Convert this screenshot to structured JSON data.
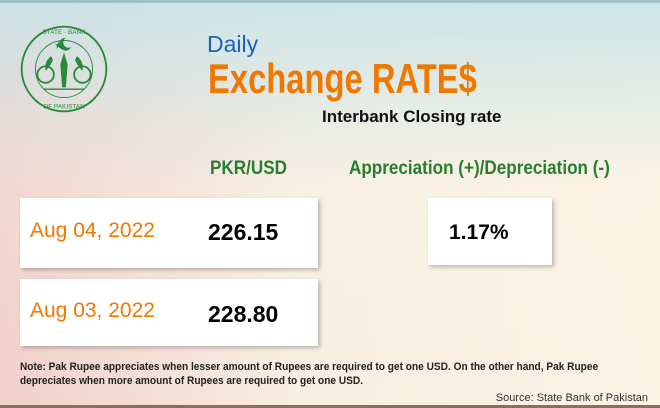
{
  "logo": {
    "text_top": "STATE BANK",
    "text_bottom": "OF PAKISTAN",
    "color": "#2a8a3a"
  },
  "header": {
    "daily": "Daily",
    "title": "Exchange RATE$",
    "subtitle": "Interbank Closing rate"
  },
  "columns": {
    "rate": "PKR/USD",
    "change": "Appreciation (+)/Depreciation (-)"
  },
  "rows": [
    {
      "date": "Aug 04, 2022",
      "rate": "226.15"
    },
    {
      "date": "Aug 03, 2022",
      "rate": "228.80"
    }
  ],
  "change_value": "1.17%",
  "note": "Note: Pak Rupee appreciates when lesser amount of Rupees are required to get one USD.  On the other hand, Pak Rupee depreciates when more amount of Rupees are required to get one USD.",
  "source": "Source: State Bank of Pakistan",
  "colors": {
    "accent_orange": "#f07800",
    "blue": "#1a62c0",
    "green": "#2a7d2e"
  }
}
